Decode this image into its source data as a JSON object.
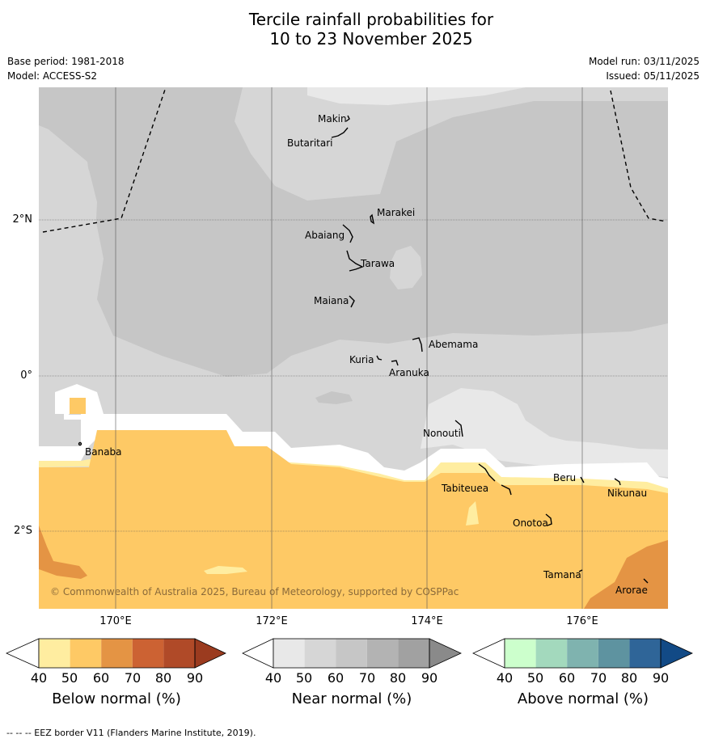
{
  "title": {
    "line1": "Tercile rainfall probabilities for",
    "line2": "10 to 23 November 2025"
  },
  "meta": {
    "base_period": "Base period: 1981-2018",
    "model": "Model: ACCESS-S2",
    "model_run": "Model run: 03/11/2025",
    "issued": "Issued: 05/11/2025"
  },
  "map": {
    "latitude_labels": [
      "2°N",
      "0°",
      "2°S"
    ],
    "longitude_labels": [
      "170°E",
      "172°E",
      "174°E",
      "176°E"
    ],
    "places": [
      {
        "name": "Makin"
      },
      {
        "name": "Butaritari"
      },
      {
        "name": "Marakei"
      },
      {
        "name": "Abaiang"
      },
      {
        "name": "Tarawa"
      },
      {
        "name": "Maiana"
      },
      {
        "name": "Abemama"
      },
      {
        "name": "Kuria"
      },
      {
        "name": "Aranuka"
      },
      {
        "name": "Nonouti"
      },
      {
        "name": "Banaba"
      },
      {
        "name": "Tabiteuea"
      },
      {
        "name": "Beru"
      },
      {
        "name": "Nikunau"
      },
      {
        "name": "Onotoa"
      },
      {
        "name": "Tamana"
      },
      {
        "name": "Arorae"
      }
    ],
    "copyright": "© Commonwealth of Australia 2025, Bureau of Meteorology, supported by COSPPac"
  },
  "colorbars": [
    {
      "title": "Below normal (%)",
      "ticks": [
        "40",
        "50",
        "60",
        "70",
        "80",
        "90"
      ],
      "colors": [
        "#ffffff",
        "#ffeda0",
        "#fec965",
        "#e49444",
        "#cc6233",
        "#b04a28",
        "#9b3b1f"
      ]
    },
    {
      "title": "Near normal (%)",
      "ticks": [
        "40",
        "50",
        "60",
        "70",
        "80",
        "90"
      ],
      "colors": [
        "#ffffff",
        "#e8e8e8",
        "#d6d6d6",
        "#c6c6c6",
        "#b3b3b3",
        "#a1a1a1",
        "#8a8a8a"
      ]
    },
    {
      "title": "Above normal (%)",
      "ticks": [
        "40",
        "50",
        "60",
        "70",
        "80",
        "90"
      ],
      "colors": [
        "#ffffff",
        "#ccffcc",
        "#a3d9bd",
        "#7fb3af",
        "#5e93a0",
        "#2f6598",
        "#124a86"
      ]
    }
  ],
  "footer": "--  --  -- EEZ border V11 (Flanders Marine Institute, 2019)."
}
